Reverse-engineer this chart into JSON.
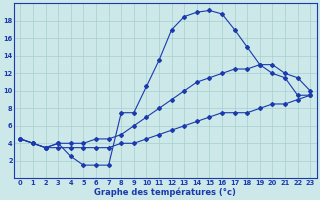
{
  "temp_curve": [
    4.5,
    4.0,
    3.5,
    4.0,
    2.5,
    1.5,
    1.5,
    1.5,
    7.5,
    7.5,
    10.5,
    13.5,
    17.0,
    18.5,
    19.0,
    19.2,
    18.8,
    17.0,
    15.0,
    13.0,
    12.0,
    11.5,
    9.5,
    9.5
  ],
  "min_curve": [
    4.5,
    4.0,
    3.5,
    3.5,
    3.5,
    3.5,
    3.5,
    3.5,
    4.0,
    4.0,
    4.5,
    5.0,
    5.5,
    6.0,
    6.5,
    7.0,
    7.5,
    7.5,
    7.5,
    8.0,
    8.5,
    8.5,
    9.0,
    9.5
  ],
  "max_curve": [
    4.5,
    4.0,
    3.5,
    4.0,
    4.0,
    4.0,
    4.5,
    4.5,
    5.0,
    6.0,
    7.0,
    8.0,
    9.0,
    10.0,
    11.0,
    11.5,
    12.0,
    12.5,
    12.5,
    13.0,
    13.0,
    12.0,
    11.5,
    10.0
  ],
  "hours": [
    0,
    1,
    2,
    3,
    4,
    5,
    6,
    7,
    8,
    9,
    10,
    11,
    12,
    13,
    14,
    15,
    16,
    17,
    18,
    19,
    20,
    21,
    22,
    23
  ],
  "line_color": "#1a3aad",
  "bg_color": "#cce8e8",
  "grid_color": "#a8cece",
  "xlabel": "Graphe des températures (°c)",
  "xlim": [
    -0.5,
    23.5
  ],
  "ylim": [
    0,
    20
  ],
  "yticks": [
    2,
    4,
    6,
    8,
    10,
    12,
    14,
    16,
    18
  ],
  "xticks": [
    0,
    1,
    2,
    3,
    4,
    5,
    6,
    7,
    8,
    9,
    10,
    11,
    12,
    13,
    14,
    15,
    16,
    17,
    18,
    19,
    20,
    21,
    22,
    23
  ],
  "xlabel_fontsize": 6.0,
  "tick_fontsize": 4.8,
  "marker_size": 2.0
}
